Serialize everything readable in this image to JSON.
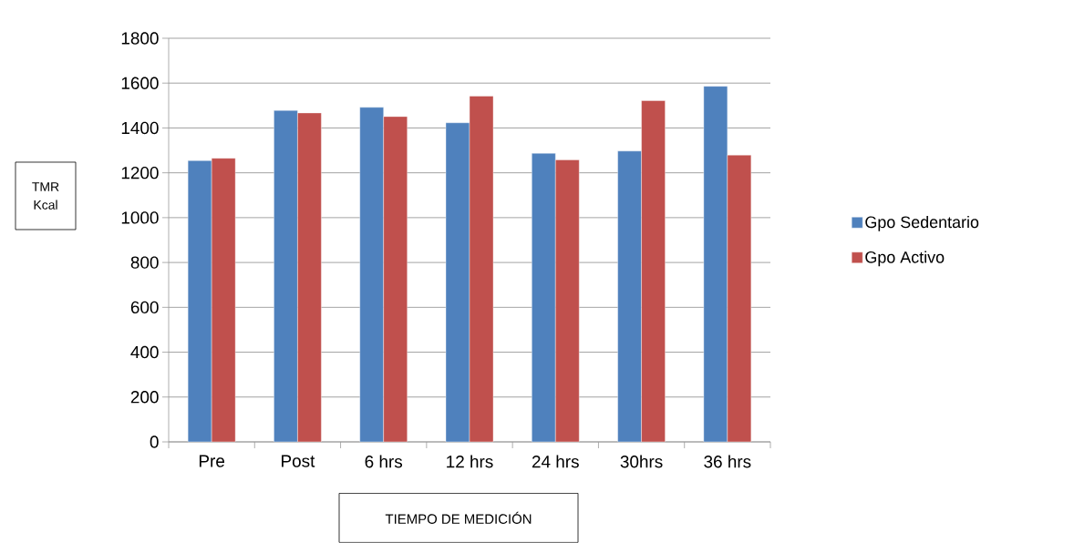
{
  "chart_data": {
    "type": "bar",
    "xlabel": "TIEMPO DE MEDICIÓN",
    "ylabel": "TMR Kcal",
    "categories": [
      "Pre",
      "Post",
      "6 hrs",
      "12 hrs",
      "24 hrs",
      "30hrs",
      "36 hrs"
    ],
    "series": [
      {
        "name": "Gpo Sedentario",
        "color": "#4f81bd",
        "values": [
          1254,
          1478,
          1492,
          1423,
          1287,
          1297,
          1586
        ]
      },
      {
        "name": "Gpo Activo",
        "color": "#c0504d",
        "values": [
          1265,
          1467,
          1451,
          1542,
          1258,
          1522,
          1279
        ]
      }
    ],
    "ylim": [
      0,
      1800
    ],
    "yticks": [
      0,
      200,
      400,
      600,
      800,
      1000,
      1200,
      1400,
      1600,
      1800
    ],
    "grid": "y",
    "legend": "right"
  }
}
